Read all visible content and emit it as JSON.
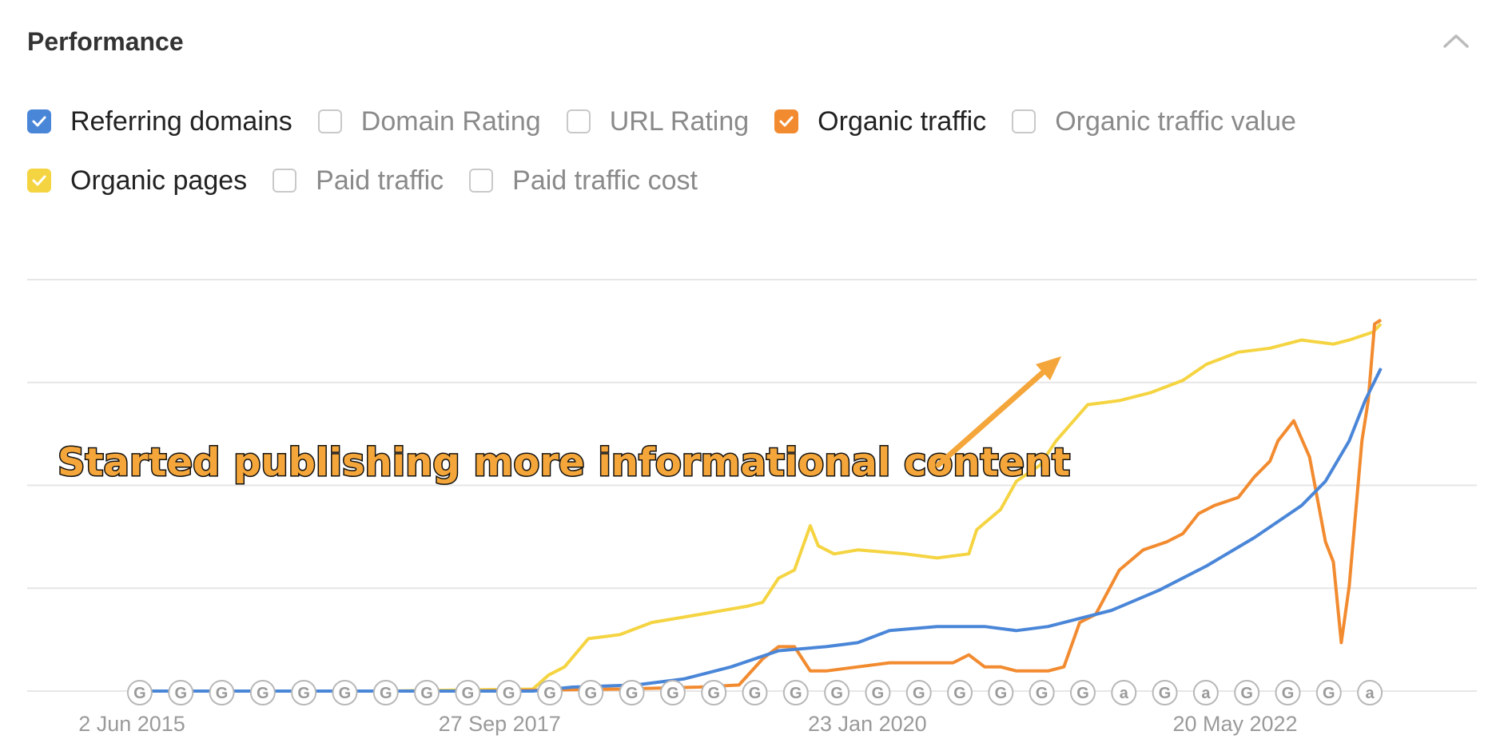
{
  "section": {
    "title": "Performance"
  },
  "metrics": [
    {
      "id": "referring-domains",
      "label": "Referring domains",
      "checked": true,
      "color": "#4a86d8"
    },
    {
      "id": "domain-rating",
      "label": "Domain Rating",
      "checked": false,
      "color": "#c9c9c9"
    },
    {
      "id": "url-rating",
      "label": "URL Rating",
      "checked": false,
      "color": "#c9c9c9"
    },
    {
      "id": "organic-traffic",
      "label": "Organic traffic",
      "checked": true,
      "color": "#f28b30"
    },
    {
      "id": "organic-traffic-value",
      "label": "Organic traffic value",
      "checked": false,
      "color": "#c9c9c9"
    },
    {
      "id": "organic-pages",
      "label": "Organic pages",
      "checked": true,
      "color": "#f5d442"
    },
    {
      "id": "paid-traffic",
      "label": "Paid traffic",
      "checked": false,
      "color": "#c9c9c9"
    },
    {
      "id": "paid-traffic-cost",
      "label": "Paid traffic cost",
      "checked": false,
      "color": "#c9c9c9"
    }
  ],
  "icons": {
    "collapse": "chevron-up-icon",
    "checkbox": "check-icon"
  },
  "chart_data": {
    "type": "line",
    "title": "",
    "xlabel": "",
    "ylabel": "",
    "x_ticks": [
      "2 Jun 2015",
      "27 Sep 2017",
      "23 Jan 2020",
      "20 May 2022"
    ],
    "x_tick_years": [
      2015.42,
      2017.74,
      2020.06,
      2022.38
    ],
    "x_range": [
      2015.42,
      2023.3
    ],
    "y_range": [
      0,
      100
    ],
    "y_axis_labels_shown": false,
    "grid": true,
    "legend": "checkbox list above chart",
    "annotation": {
      "text": "Started publishing more informational content",
      "color": "#f4a63a"
    },
    "series": [
      {
        "name": "Organic pages",
        "color": "#f5d442",
        "points": [
          [
            2015.42,
            0
          ],
          [
            2017.0,
            0
          ],
          [
            2017.95,
            0.5
          ],
          [
            2018.05,
            4
          ],
          [
            2018.15,
            6
          ],
          [
            2018.3,
            13
          ],
          [
            2018.5,
            14
          ],
          [
            2018.7,
            17
          ],
          [
            2019.0,
            19
          ],
          [
            2019.3,
            21
          ],
          [
            2019.4,
            22
          ],
          [
            2019.5,
            28
          ],
          [
            2019.6,
            30
          ],
          [
            2019.7,
            41
          ],
          [
            2019.75,
            36
          ],
          [
            2019.85,
            34
          ],
          [
            2020.0,
            35
          ],
          [
            2020.3,
            34
          ],
          [
            2020.5,
            33
          ],
          [
            2020.7,
            34
          ],
          [
            2020.75,
            40
          ],
          [
            2020.9,
            45
          ],
          [
            2021.0,
            52
          ],
          [
            2021.15,
            56
          ],
          [
            2021.25,
            62
          ],
          [
            2021.45,
            71
          ],
          [
            2021.65,
            72
          ],
          [
            2021.85,
            74
          ],
          [
            2022.05,
            77
          ],
          [
            2022.2,
            81
          ],
          [
            2022.4,
            84
          ],
          [
            2022.6,
            85
          ],
          [
            2022.8,
            87
          ],
          [
            2023.0,
            86
          ],
          [
            2023.1,
            87
          ],
          [
            2023.25,
            89
          ],
          [
            2023.3,
            91
          ]
        ]
      },
      {
        "name": "Organic traffic",
        "color": "#f28b30",
        "points": [
          [
            2015.42,
            0
          ],
          [
            2017.5,
            0
          ],
          [
            2018.5,
            0.5
          ],
          [
            2019.0,
            1
          ],
          [
            2019.25,
            1.5
          ],
          [
            2019.4,
            8
          ],
          [
            2019.5,
            11
          ],
          [
            2019.6,
            11
          ],
          [
            2019.7,
            5
          ],
          [
            2019.8,
            5
          ],
          [
            2020.0,
            6
          ],
          [
            2020.2,
            7
          ],
          [
            2020.4,
            7
          ],
          [
            2020.6,
            7
          ],
          [
            2020.7,
            9
          ],
          [
            2020.8,
            6
          ],
          [
            2020.9,
            6
          ],
          [
            2021.0,
            5
          ],
          [
            2021.2,
            5
          ],
          [
            2021.3,
            6
          ],
          [
            2021.4,
            17
          ],
          [
            2021.5,
            19
          ],
          [
            2021.65,
            30
          ],
          [
            2021.8,
            35
          ],
          [
            2021.95,
            37
          ],
          [
            2022.05,
            39
          ],
          [
            2022.15,
            44
          ],
          [
            2022.25,
            46
          ],
          [
            2022.4,
            48
          ],
          [
            2022.5,
            53
          ],
          [
            2022.6,
            57
          ],
          [
            2022.65,
            62
          ],
          [
            2022.75,
            67
          ],
          [
            2022.85,
            58
          ],
          [
            2022.95,
            37
          ],
          [
            2023.0,
            32
          ],
          [
            2023.05,
            12
          ],
          [
            2023.1,
            26
          ],
          [
            2023.18,
            62
          ],
          [
            2023.22,
            72
          ],
          [
            2023.26,
            91
          ],
          [
            2023.3,
            92
          ]
        ]
      },
      {
        "name": "Referring domains",
        "color": "#4a86d8",
        "points": [
          [
            2015.42,
            0
          ],
          [
            2017.95,
            0
          ],
          [
            2018.2,
            1
          ],
          [
            2018.6,
            1.5
          ],
          [
            2018.9,
            3
          ],
          [
            2019.2,
            6
          ],
          [
            2019.5,
            10
          ],
          [
            2019.8,
            11
          ],
          [
            2020.0,
            12
          ],
          [
            2020.2,
            15
          ],
          [
            2020.5,
            16
          ],
          [
            2020.8,
            16
          ],
          [
            2021.0,
            15
          ],
          [
            2021.2,
            16
          ],
          [
            2021.4,
            18
          ],
          [
            2021.6,
            20
          ],
          [
            2021.9,
            25
          ],
          [
            2022.2,
            31
          ],
          [
            2022.5,
            38
          ],
          [
            2022.8,
            46
          ],
          [
            2022.95,
            52
          ],
          [
            2023.1,
            62
          ],
          [
            2023.2,
            72
          ],
          [
            2023.3,
            80
          ]
        ]
      }
    ],
    "event_markers": [
      "G",
      "G",
      "G",
      "G",
      "G",
      "G",
      "G",
      "G",
      "G",
      "G",
      "G",
      "G",
      "G",
      "G",
      "G",
      "G",
      "G",
      "G",
      "G",
      "G",
      "G",
      "G",
      "G",
      "G",
      "a",
      "G",
      "a",
      "G",
      "G",
      "G",
      "a"
    ]
  }
}
